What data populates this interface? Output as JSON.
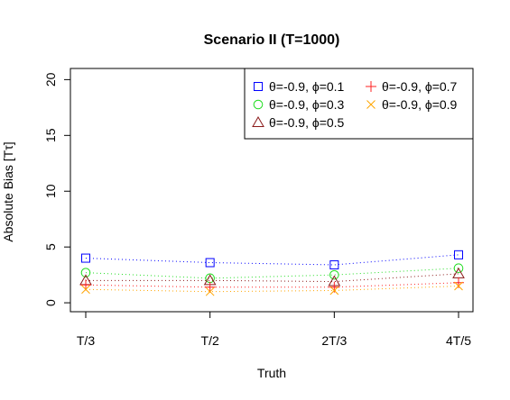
{
  "chart_data": {
    "type": "line",
    "title": "Scenario II (T=1000)",
    "xlabel": "Truth",
    "ylabel": "Absolute Bias [Tτ]",
    "categories": [
      "T/3",
      "T/2",
      "2T/3",
      "4T/5"
    ],
    "yticks": [
      "0",
      "5",
      "10",
      "15",
      "20"
    ],
    "ylim": [
      -0.8,
      21
    ],
    "legend_position": "top-right",
    "series": [
      {
        "name": "θ=-0.9, ϕ=0.1",
        "color": "#0000ff",
        "marker": "square",
        "values": [
          4.0,
          3.6,
          3.4,
          4.3
        ]
      },
      {
        "name": "θ=-0.9, ϕ=0.3",
        "color": "#22dd22",
        "marker": "circle",
        "values": [
          2.7,
          2.2,
          2.5,
          3.1
        ]
      },
      {
        "name": "θ=-0.9, ϕ=0.5",
        "color": "#8b1a1a",
        "marker": "triangle",
        "values": [
          2.0,
          2.0,
          1.9,
          2.6
        ]
      },
      {
        "name": "θ=-0.9, ϕ=0.7",
        "color": "#ff2020",
        "marker": "plus",
        "values": [
          1.6,
          1.4,
          1.4,
          1.8
        ]
      },
      {
        "name": "θ=-0.9, ϕ=0.9",
        "color": "#ffa500",
        "marker": "cross",
        "values": [
          1.2,
          1.0,
          1.1,
          1.5
        ]
      }
    ]
  }
}
